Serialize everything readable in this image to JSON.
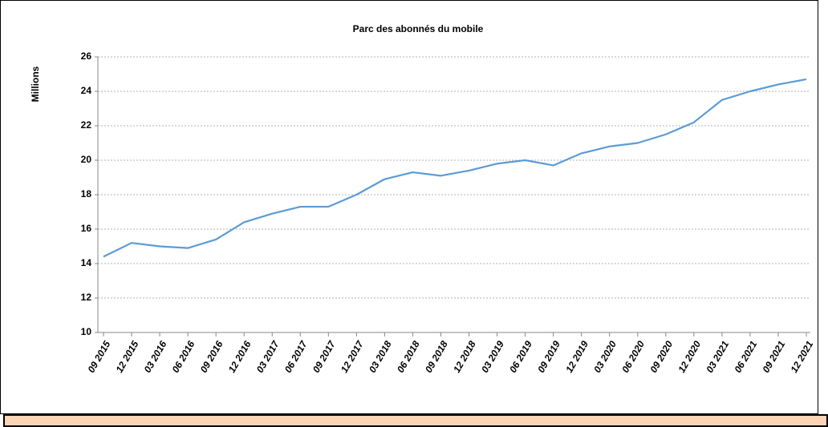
{
  "chart_data": {
    "type": "line",
    "title": "Parc des abonnés du mobile",
    "y_label": "Millions",
    "categories": [
      "09 2015",
      "12 2015",
      "03 2016",
      "06 2016",
      "09 2016",
      "12 2016",
      "03 2017",
      "06 2017",
      "09 2017",
      "12 2017",
      "03 2018",
      "06 2018",
      "09 2018",
      "12 2018",
      "03 2019",
      "06 2019",
      "09 2019",
      "12 2019",
      "03 2020",
      "06 2020",
      "09 2020",
      "12 2020",
      "03 2021",
      "06 2021",
      "09 2021",
      "12 2021"
    ],
    "series": [
      {
        "name": "Parc des abonnés du mobile",
        "color": "#5b9bd5",
        "values": [
          14.4,
          15.2,
          15.0,
          14.9,
          15.4,
          16.4,
          16.9,
          17.3,
          17.3,
          18.0,
          18.9,
          19.3,
          19.1,
          19.4,
          19.8,
          20.0,
          19.7,
          20.4,
          20.8,
          21.0,
          21.5,
          22.2,
          23.5,
          24.0,
          24.4,
          24.7
        ]
      }
    ],
    "ylim": [
      10,
      26
    ],
    "yticks": [
      10,
      12,
      14,
      16,
      18,
      20,
      22,
      24,
      26
    ],
    "grid": true
  }
}
